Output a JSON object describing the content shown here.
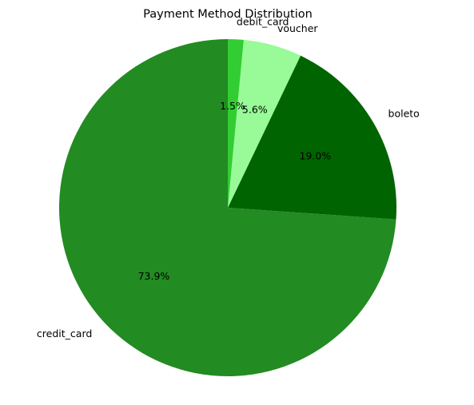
{
  "chart_data": {
    "type": "pie",
    "title": "Payment Method Distribution",
    "start_angle_deg": 90,
    "direction": "counterclockwise",
    "slices": [
      {
        "label": "credit_card",
        "value": 73.9,
        "pct_label": "73.9%",
        "color": "#228b22"
      },
      {
        "label": "boleto",
        "value": 19.0,
        "pct_label": "19.0%",
        "color": "#006400"
      },
      {
        "label": "voucher",
        "value": 5.6,
        "pct_label": "5.6%",
        "color": "#98fb98"
      },
      {
        "label": "debit_card",
        "value": 1.5,
        "pct_label": "1.5%",
        "color": "#32cd32"
      }
    ]
  }
}
